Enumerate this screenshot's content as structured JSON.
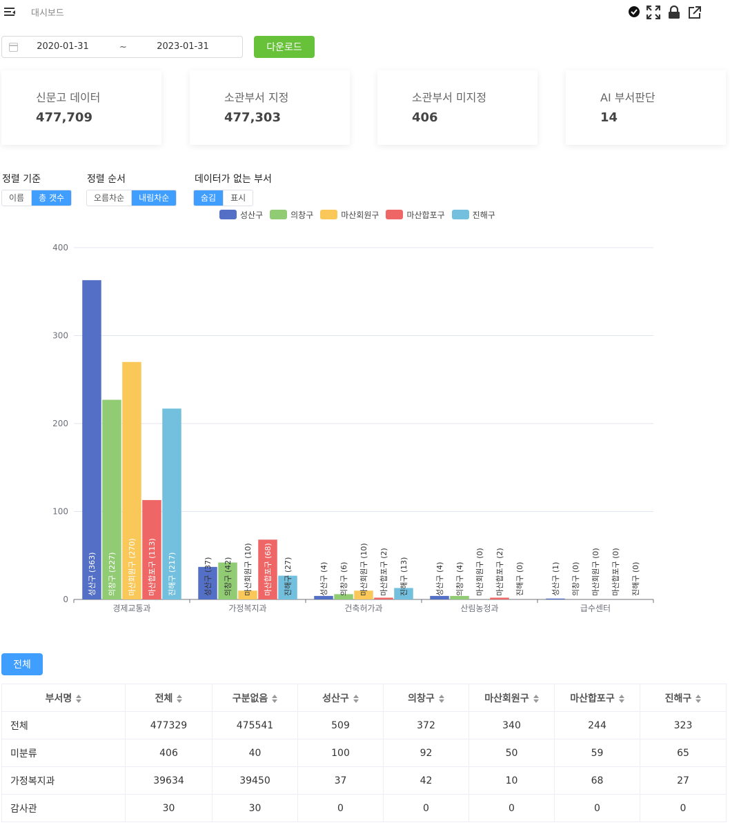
{
  "header": {
    "breadcrumb": "대시보드",
    "icons": [
      "menu-toggle-icon",
      "check-circle-icon",
      "fullscreen-icon",
      "lock-icon",
      "external-link-icon"
    ]
  },
  "filters": {
    "date_start": "2020-01-31",
    "date_end": "2023-01-31",
    "range_separator": "~",
    "download_label": "다운로드"
  },
  "cards": [
    {
      "label": "신문고 데이터",
      "value": "477,709"
    },
    {
      "label": "소관부서 지정",
      "value": "477,303"
    },
    {
      "label": "소관부서 미지정",
      "value": "406"
    },
    {
      "label": "AI 부서판단",
      "value": "14"
    }
  ],
  "controls": {
    "sort_by": {
      "label": "정렬 기준",
      "options": [
        "이름",
        "총 갯수"
      ],
      "selected": "총 갯수"
    },
    "sort_order": {
      "label": "정렬 순서",
      "options": [
        "오름차순",
        "내림차순"
      ],
      "selected": "내림차순"
    },
    "empty_dept": {
      "label": "데이터가 없는 부서",
      "options": [
        "숨김",
        "표시"
      ],
      "selected": "숨김"
    }
  },
  "colors": {
    "accent": "#409eff",
    "download": "#67c23a",
    "series": [
      "#5470c6",
      "#91cc75",
      "#fac858",
      "#ee6666",
      "#73c0de"
    ]
  },
  "chart_data": {
    "type": "bar",
    "categories": [
      "경제교통과",
      "가정복지과",
      "건축허가과",
      "산림농정과",
      "급수센터"
    ],
    "series": [
      {
        "name": "성산구",
        "values": [
          363,
          37,
          4,
          4,
          1
        ]
      },
      {
        "name": "의창구",
        "values": [
          227,
          42,
          6,
          4,
          0
        ]
      },
      {
        "name": "마산회원구",
        "values": [
          270,
          10,
          10,
          0,
          0
        ]
      },
      {
        "name": "마산합포구",
        "values": [
          113,
          68,
          2,
          2,
          0
        ]
      },
      {
        "name": "진해구",
        "values": [
          217,
          27,
          13,
          0,
          0
        ]
      }
    ],
    "data_labels": [
      [
        "성산구 (363)",
        "의창구 (227)",
        "마산회원구 (270)",
        "마산합포구 (113)",
        "진해구 (217)"
      ],
      [
        "성산구 (37)",
        "의창구 (42)",
        "마산회원구 (10)",
        "마산합포구 (68)",
        "진해구 (27)"
      ],
      [
        "성산구 (4)",
        "의창구 (6)",
        "마산회원구 (10)",
        "마산합포구 (2)",
        "진해구 (13)"
      ],
      [
        "성산구 (4)",
        "의창구 (4)",
        "마산회원구 (0)",
        "마산합포구 (2)",
        "진해구 (0)"
      ],
      [
        "성산구 (1)",
        "의창구 (0)",
        "마산회원구 (0)",
        "마산합포구 (0)",
        "진해구 (0)"
      ]
    ],
    "y_ticks": [
      "0",
      "100",
      "200",
      "300",
      "400"
    ],
    "ylim": [
      0,
      400
    ],
    "grid": true,
    "legend_position": "top"
  },
  "table": {
    "all_button": "전체",
    "columns": [
      "부서명",
      "전체",
      "구분없음",
      "성산구",
      "의창구",
      "마산회원구",
      "마산합포구",
      "진해구"
    ],
    "rows": [
      [
        "전체",
        "477329",
        "475541",
        "509",
        "372",
        "340",
        "244",
        "323"
      ],
      [
        "미분류",
        "406",
        "40",
        "100",
        "92",
        "50",
        "59",
        "65"
      ],
      [
        "가정복지과",
        "39634",
        "39450",
        "37",
        "42",
        "10",
        "68",
        "27"
      ],
      [
        "감사관",
        "30",
        "30",
        "0",
        "0",
        "0",
        "0",
        "0"
      ]
    ]
  }
}
